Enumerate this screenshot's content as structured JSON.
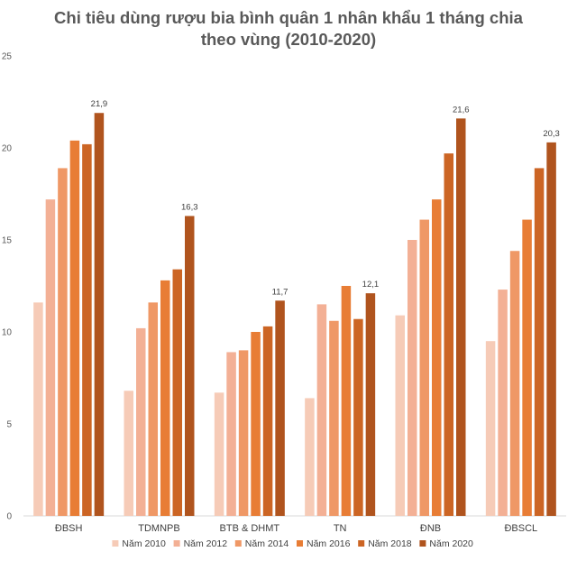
{
  "chart_data": {
    "type": "bar",
    "title_line1": "Chi tiêu dùng rượu bia bình quân 1 nhân khẩu 1 tháng chia",
    "title_line2": "theo vùng (2010-2020)",
    "categories": [
      "ĐBSH",
      "TDMNPB",
      "BTB & DHMT",
      "TN",
      "ĐNB",
      "ĐBSCL"
    ],
    "ylim": [
      0,
      25
    ],
    "yticks": [
      0,
      5,
      10,
      15,
      20,
      25
    ],
    "legend_position": "bottom",
    "series": [
      {
        "name": "Năm 2010",
        "color": "#f6cbb7",
        "values": [
          11.6,
          6.8,
          6.7,
          6.4,
          10.9,
          9.5
        ]
      },
      {
        "name": "Năm 2012",
        "color": "#f3b095",
        "values": [
          17.2,
          10.2,
          8.9,
          11.5,
          15.0,
          12.3
        ]
      },
      {
        "name": "Năm 2014",
        "color": "#ef9866",
        "values": [
          18.9,
          11.6,
          9.0,
          10.6,
          16.1,
          14.4
        ]
      },
      {
        "name": "Năm 2016",
        "color": "#e87d35",
        "values": [
          20.4,
          12.8,
          10.0,
          12.5,
          17.2,
          16.1
        ]
      },
      {
        "name": "Năm 2018",
        "color": "#cc6524",
        "values": [
          20.2,
          13.4,
          10.3,
          10.7,
          19.7,
          18.9
        ]
      },
      {
        "name": "Năm 2020",
        "color": "#b0541e",
        "values": [
          21.9,
          16.3,
          11.7,
          12.1,
          21.6,
          20.3
        ]
      }
    ],
    "data_labels": [
      "21,9",
      "16,3",
      "11,7",
      "12,1",
      "21,6",
      "20,3"
    ]
  }
}
